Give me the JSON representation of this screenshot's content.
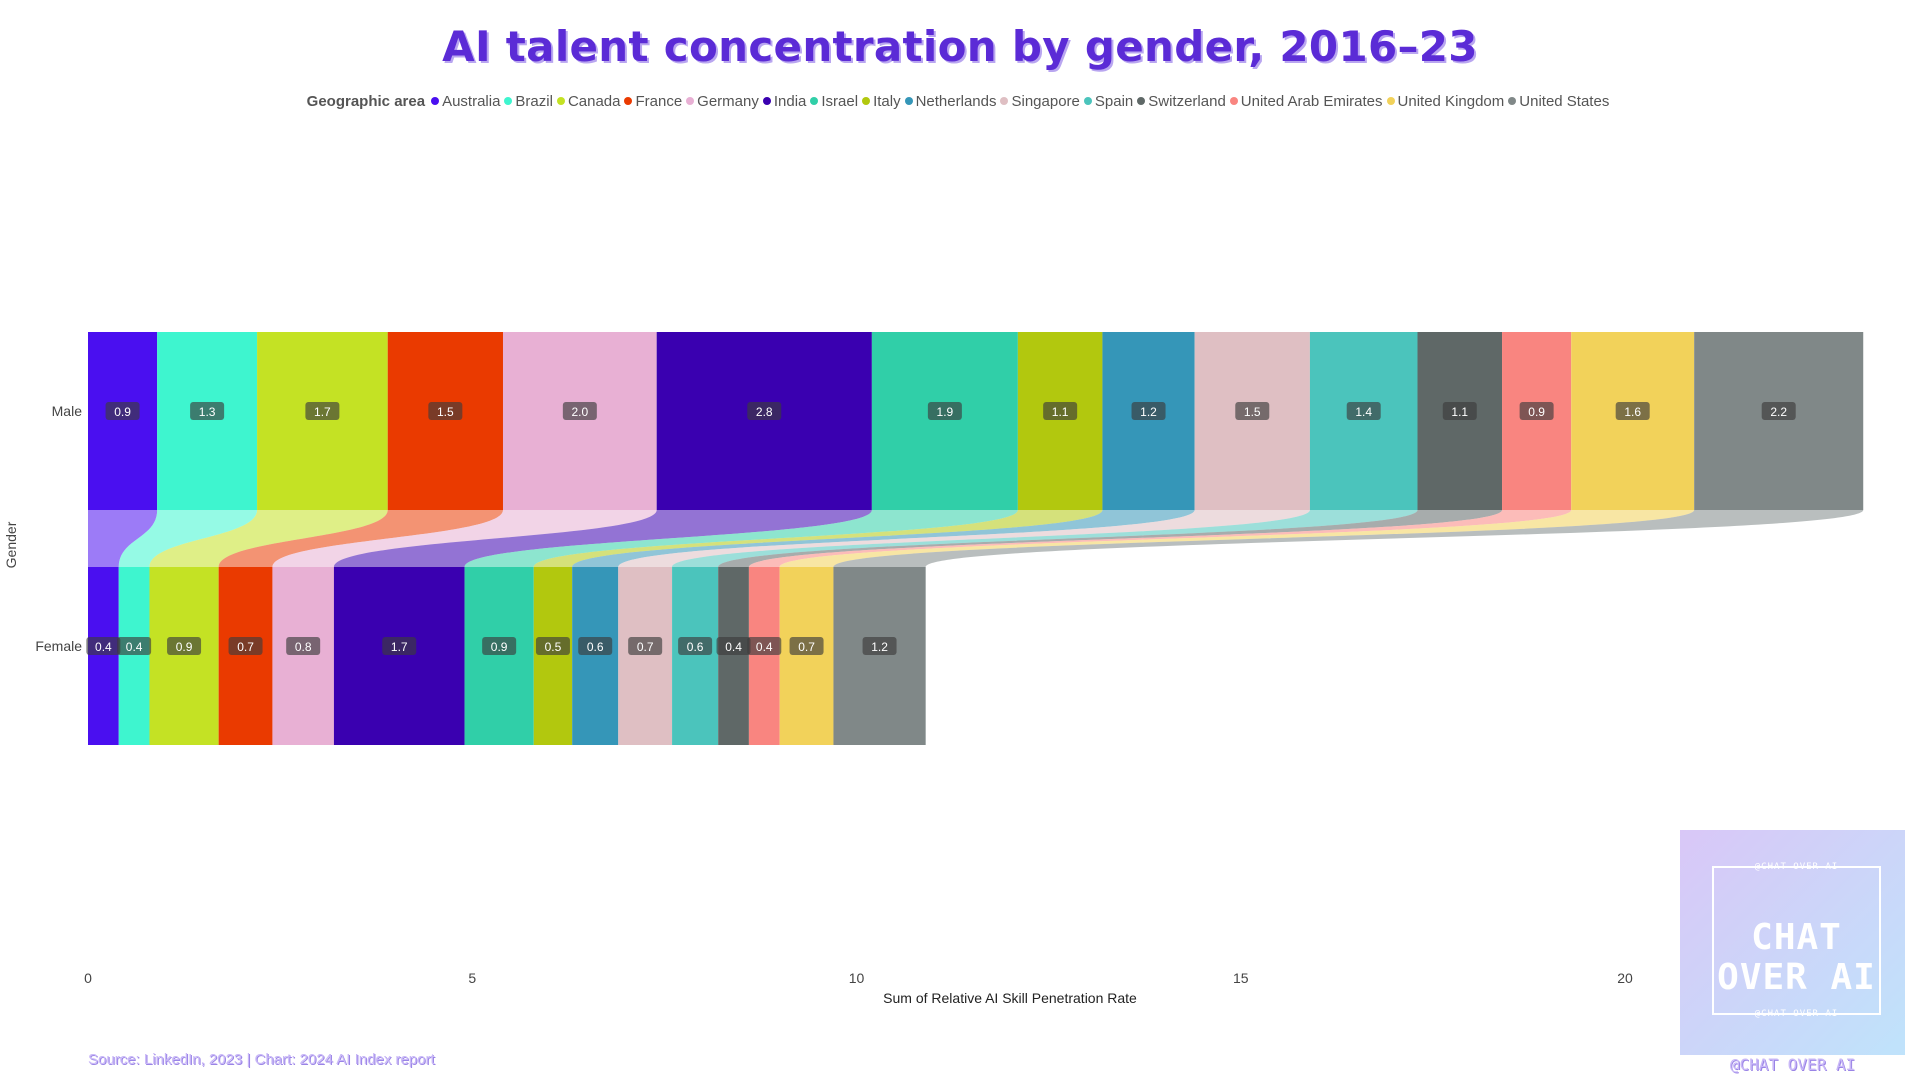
{
  "title": "AI talent concentration by gender, 2016–23",
  "source": "Source: LinkedIn, 2023 | Chart: 2024 AI Index report",
  "logo": {
    "top_small": "@CHAT OVER AI",
    "main": "CHAT OVER AI",
    "bottom_small": "@CHAT OVER AI",
    "handle": "@CHAT OVER AI"
  },
  "chart_data": {
    "type": "bar",
    "orientation": "horizontal-stacked-ribbon",
    "legend_title": "Geographic area",
    "categories": [
      "Male",
      "Female"
    ],
    "xlabel": "Sum of Relative AI Skill Penetration Rate",
    "ylabel": "Gender",
    "xlim": [
      0,
      23.5
    ],
    "xticks": [
      0,
      5,
      10,
      15,
      20
    ],
    "series": [
      {
        "name": "Australia",
        "color": "#4a0ff0",
        "values": [
          0.9,
          0.4
        ]
      },
      {
        "name": "Brazil",
        "color": "#3ef5cf",
        "values": [
          1.3,
          0.4
        ]
      },
      {
        "name": "Canada",
        "color": "#c4e224",
        "values": [
          1.7,
          0.9
        ]
      },
      {
        "name": "France",
        "color": "#ea3a00",
        "values": [
          1.5,
          0.7
        ]
      },
      {
        "name": "Germany",
        "color": "#e8b0d4",
        "values": [
          2.0,
          0.8
        ]
      },
      {
        "name": "India",
        "color": "#3a00b0",
        "values": [
          2.8,
          1.7
        ]
      },
      {
        "name": "Israel",
        "color": "#30cfa8",
        "values": [
          1.9,
          0.9
        ]
      },
      {
        "name": "Italy",
        "color": "#b2c80e",
        "values": [
          1.1,
          0.5
        ]
      },
      {
        "name": "Netherlands",
        "color": "#3596b8",
        "values": [
          1.2,
          0.6
        ]
      },
      {
        "name": "Singapore",
        "color": "#dfbfc3",
        "values": [
          1.5,
          0.7
        ]
      },
      {
        "name": "Spain",
        "color": "#4bc4bc",
        "values": [
          1.4,
          0.6
        ]
      },
      {
        "name": "Switzerland",
        "color": "#5f6867",
        "values": [
          1.1,
          0.4
        ]
      },
      {
        "name": "United Arab Emirates",
        "color": "#f98580",
        "values": [
          0.9,
          0.4
        ]
      },
      {
        "name": "United Kingdom",
        "color": "#f2d25a",
        "values": [
          1.6,
          0.7
        ]
      },
      {
        "name": "United States",
        "color": "#808888",
        "values": [
          2.2,
          1.2
        ]
      }
    ]
  }
}
